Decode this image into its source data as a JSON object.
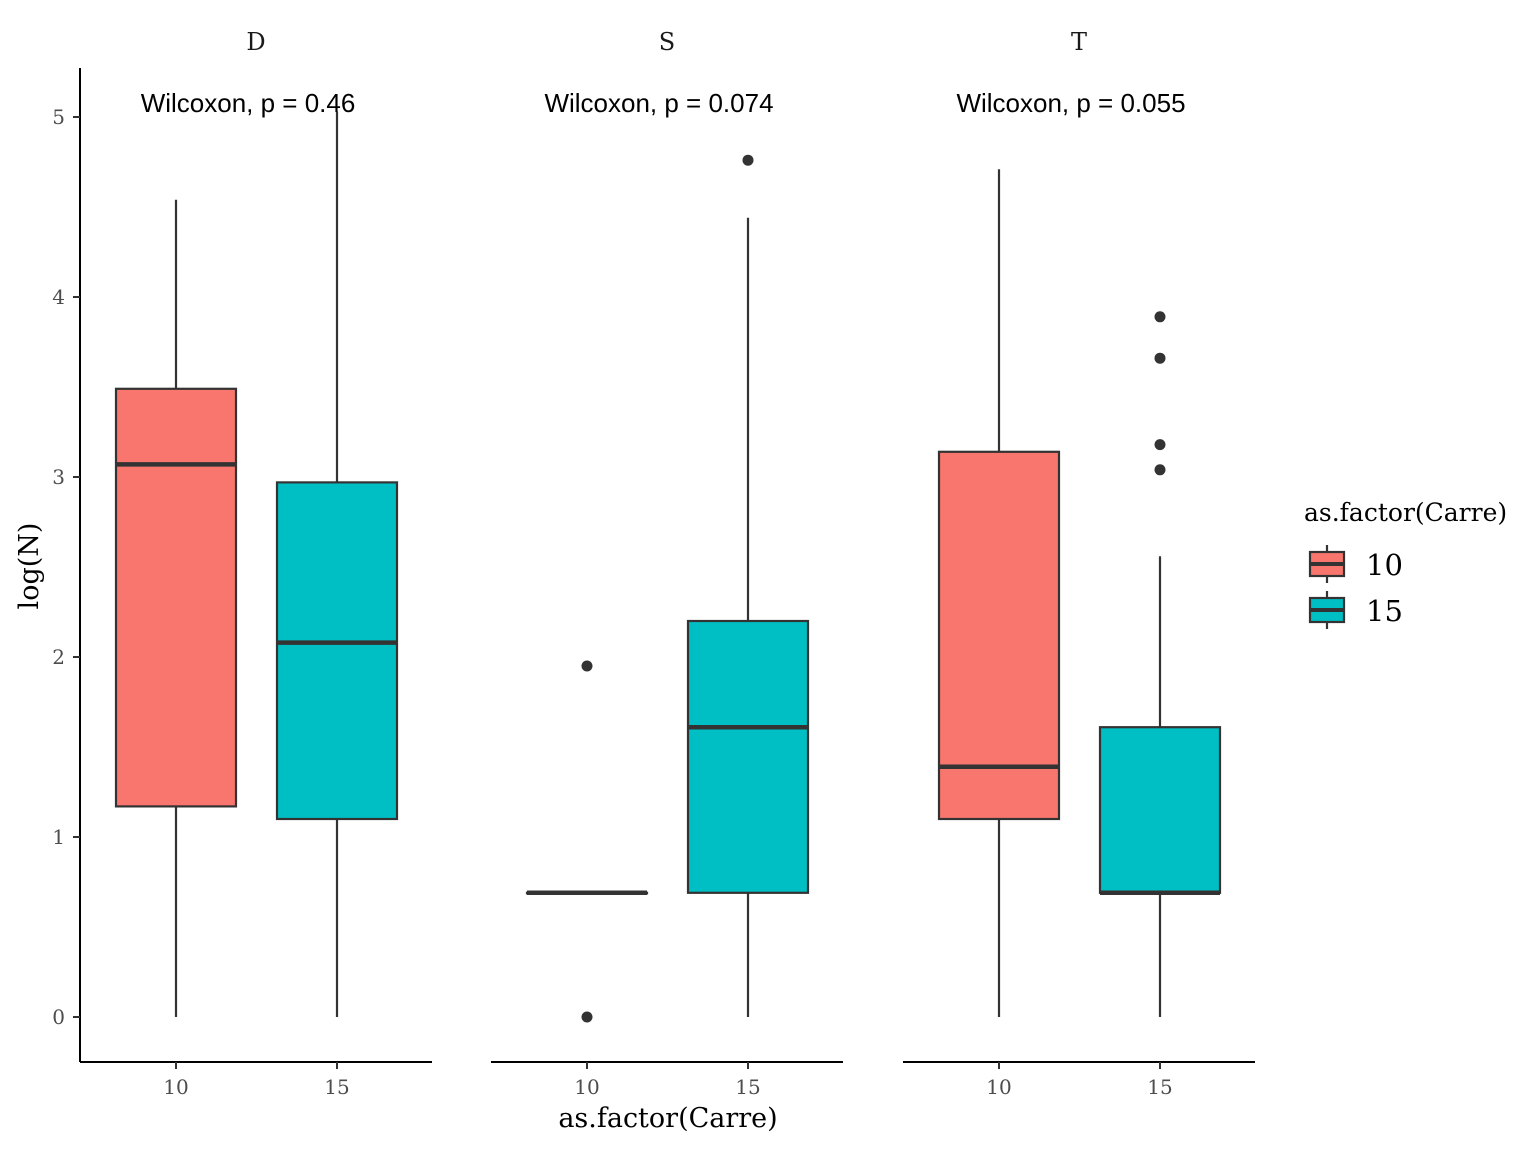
{
  "chart_data": {
    "type": "boxplot",
    "ylabel": "log(N)",
    "xlabel": "as.factor(Carre)",
    "ylim": [
      -0.25,
      5.27
    ],
    "yticks": [
      0,
      1,
      2,
      3,
      4,
      5
    ],
    "legend": {
      "title": "as.factor(Carre)",
      "placement": "right",
      "entries": [
        {
          "label": "10",
          "color": "#F8766D"
        },
        {
          "label": "15",
          "color": "#00BFC4"
        }
      ]
    },
    "colors": {
      "10": "#F8766D",
      "15": "#00BFC4",
      "outline": "#333333"
    },
    "panels": [
      {
        "strip": "D",
        "annotation": "Wilcoxon, p = 0.46",
        "boxes": [
          {
            "category": "10",
            "lower": 0,
            "q1": 1.17,
            "median": 3.07,
            "q3": 3.49,
            "upper": 4.54,
            "outliers": []
          },
          {
            "category": "15",
            "lower": 0,
            "q1": 1.1,
            "median": 2.08,
            "q3": 2.97,
            "upper": 5.03,
            "outliers": []
          }
        ]
      },
      {
        "strip": "S",
        "annotation": "Wilcoxon, p = 0.074",
        "boxes": [
          {
            "category": "10",
            "lower": 0.69,
            "q1": 0.69,
            "median": 0.69,
            "q3": 0.69,
            "upper": 0.69,
            "outliers": [
              1.95,
              0
            ]
          },
          {
            "category": "15",
            "lower": 0,
            "q1": 0.69,
            "median": 1.61,
            "q3": 2.2,
            "upper": 4.44,
            "outliers": [
              4.76
            ]
          }
        ]
      },
      {
        "strip": "T",
        "annotation": "Wilcoxon, p = 0.055",
        "boxes": [
          {
            "category": "10",
            "lower": 0,
            "q1": 1.1,
            "median": 1.39,
            "q3": 3.14,
            "upper": 4.71,
            "outliers": []
          },
          {
            "category": "15",
            "lower": 0,
            "q1": 0.69,
            "median": 0.69,
            "q3": 1.61,
            "upper": 2.56,
            "outliers": [
              3.89,
              3.66,
              3.18,
              3.04
            ]
          }
        ]
      }
    ]
  }
}
